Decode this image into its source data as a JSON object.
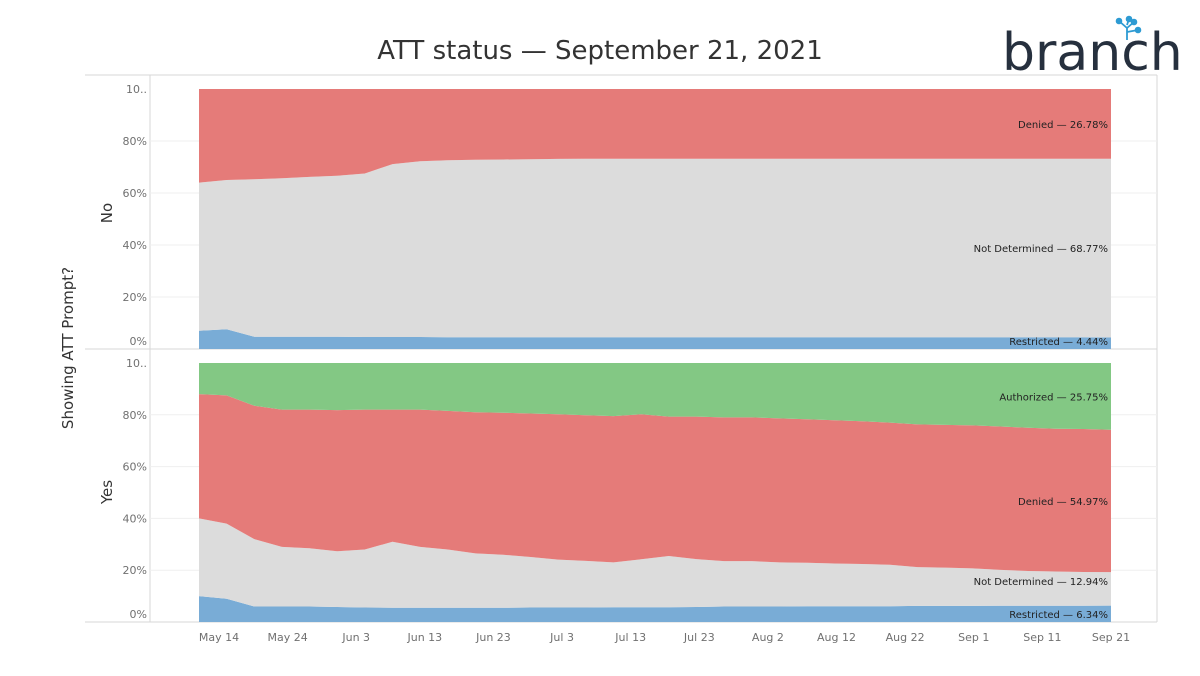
{
  "brand": {
    "logo_text": "branch"
  },
  "chart_data": {
    "type": "area",
    "stacked": "100%",
    "title": "ATT status — September 21, 2021",
    "ylabel": "Showing ATT Prompt?",
    "xlabel": "",
    "y_ticks": [
      "10..",
      "80%",
      "60%",
      "40%",
      "20%",
      "0%"
    ],
    "ylim": [
      0,
      100
    ],
    "grid": true,
    "x_tick_labels": [
      "May 14",
      "May 24",
      "Jun 3",
      "Jun 13",
      "Jun 23",
      "Jul 3",
      "Jul 13",
      "Jul 23",
      "Aug 2",
      "Aug 12",
      "Aug 22",
      "Sep 1",
      "Sep 11",
      "Sep 21"
    ],
    "x": [
      "May 10",
      "May 14",
      "May 18",
      "May 22",
      "May 26",
      "May 30",
      "Jun 3",
      "Jun 7",
      "Jun 11",
      "Jun 15",
      "Jun 19",
      "Jun 23",
      "Jun 27",
      "Jul 1",
      "Jul 5",
      "Jul 9",
      "Jul 13",
      "Jul 17",
      "Jul 21",
      "Jul 25",
      "Jul 29",
      "Aug 2",
      "Aug 6",
      "Aug 10",
      "Aug 14",
      "Aug 18",
      "Aug 22",
      "Aug 26",
      "Aug 30",
      "Sep 3",
      "Sep 7",
      "Sep 11",
      "Sep 15",
      "Sep 21"
    ],
    "colors": {
      "Restricted": "#79acd6",
      "Not Determined": "#dcdcdc",
      "Denied": "#e57b79",
      "Authorized": "#83c884"
    },
    "panels": [
      {
        "row_label": "No",
        "series": [
          {
            "name": "Restricted",
            "end_label": "Restricted — 4.44%",
            "values": [
              7,
              7.6,
              4.7,
              4.7,
              4.7,
              4.7,
              4.6,
              4.6,
              4.6,
              4.5,
              4.5,
              4.5,
              4.5,
              4.5,
              4.5,
              4.5,
              4.5,
              4.5,
              4.5,
              4.5,
              4.5,
              4.5,
              4.5,
              4.5,
              4.5,
              4.5,
              4.5,
              4.5,
              4.5,
              4.5,
              4.5,
              4.5,
              4.5,
              4.44
            ]
          },
          {
            "name": "Not Determined",
            "end_label": "Not Determined — 68.77%",
            "values": [
              57,
              57.4,
              60.6,
              61,
              61.5,
              61.9,
              62.9,
              66.5,
              67.6,
              68.1,
              68.3,
              68.4,
              68.5,
              68.6,
              68.7,
              68.7,
              68.7,
              68.7,
              68.7,
              68.7,
              68.7,
              68.7,
              68.7,
              68.7,
              68.7,
              68.7,
              68.7,
              68.7,
              68.7,
              68.7,
              68.7,
              68.7,
              68.7,
              68.77
            ]
          },
          {
            "name": "Denied",
            "end_label": "Denied — 26.78%",
            "values": [
              36,
              35,
              34.7,
              34.3,
              33.8,
              33.4,
              32.5,
              28.9,
              27.8,
              27.4,
              27.2,
              27.1,
              27,
              26.9,
              26.8,
              26.8,
              26.8,
              26.8,
              26.8,
              26.8,
              26.8,
              26.8,
              26.8,
              26.8,
              26.8,
              26.8,
              26.8,
              26.8,
              26.8,
              26.8,
              26.8,
              26.8,
              26.8,
              26.78
            ]
          }
        ]
      },
      {
        "row_label": "Yes",
        "series": [
          {
            "name": "Restricted",
            "end_label": "Restricted — 6.34%",
            "values": [
              10,
              9,
              6,
              6,
              6,
              5.8,
              5.6,
              5.5,
              5.5,
              5.5,
              5.5,
              5.5,
              5.6,
              5.6,
              5.6,
              5.7,
              5.7,
              5.7,
              5.8,
              6,
              6,
              6,
              6.1,
              6.1,
              6.1,
              6.1,
              6.2,
              6.2,
              6.2,
              6.3,
              6.3,
              6.3,
              6.3,
              6.34
            ]
          },
          {
            "name": "Not Determined",
            "end_label": "Not Determined — 12.94%",
            "values": [
              30,
              29,
              26,
              23,
              22.5,
              21.5,
              22.4,
              25.5,
              23.5,
              22.5,
              21,
              20.5,
              19.5,
              18.5,
              18,
              17.3,
              18.5,
              19.8,
              18.5,
              17.5,
              17.5,
              17,
              16.8,
              16.5,
              16.3,
              16,
              15,
              14.8,
              14.5,
              13.8,
              13.4,
              13.2,
              13,
              12.94
            ]
          },
          {
            "name": "Denied",
            "end_label": "Denied — 54.97%",
            "values": [
              48,
              49.5,
              51.5,
              53,
              53.5,
              54.5,
              54,
              51,
              53,
              53.5,
              54.5,
              54.8,
              55.4,
              56.1,
              56.2,
              56.5,
              56,
              53.8,
              55,
              55.5,
              55.5,
              55.6,
              55.4,
              55.3,
              55.1,
              54.9,
              55.1,
              55.1,
              55.2,
              55.4,
              55.3,
              55.1,
              55.2,
              54.97
            ]
          },
          {
            "name": "Authorized",
            "end_label": "Authorized — 25.75%",
            "values": [
              12,
              12.5,
              16.5,
              18,
              18,
              18.2,
              18,
              18,
              18,
              18.5,
              19,
              19.2,
              19.5,
              19.8,
              20.2,
              20.5,
              19.8,
              20.7,
              20.7,
              21,
              21,
              21.4,
              21.7,
              22.1,
              22.5,
              23,
              23.7,
              23.9,
              24.1,
              24.5,
              25,
              25.4,
              25.5,
              25.75
            ]
          }
        ]
      }
    ]
  }
}
